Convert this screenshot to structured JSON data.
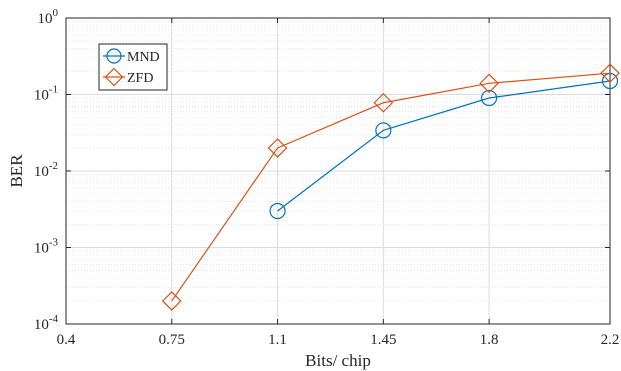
{
  "chart_data": {
    "type": "line",
    "title": "",
    "xlabel": "Bits/ chip",
    "ylabel": "BER",
    "xlim": [
      0.4,
      2.2
    ],
    "ylim": [
      0.0001,
      1
    ],
    "yscale": "log",
    "xticks": [
      "0.4",
      "0.75",
      "1.1",
      "1.45",
      "1.8",
      "2.2"
    ],
    "xtick_values": [
      0.4,
      0.75,
      1.1,
      1.45,
      1.8,
      2.2
    ],
    "yticks": [
      {
        "base": "10",
        "exp": "-4",
        "value": 0.0001
      },
      {
        "base": "10",
        "exp": "-3",
        "value": 0.001
      },
      {
        "base": "10",
        "exp": "-2",
        "value": 0.01
      },
      {
        "base": "10",
        "exp": "-1",
        "value": 0.1
      },
      {
        "base": "10",
        "exp": "0",
        "value": 1
      }
    ],
    "grid": true,
    "legend_position": "top-left",
    "series": [
      {
        "name": "MND",
        "color": "#0072BD",
        "marker": "circle",
        "x": [
          1.1,
          1.45,
          1.8,
          2.2
        ],
        "y": [
          0.003,
          0.034,
          0.09,
          0.15
        ]
      },
      {
        "name": "ZFD",
        "color": "#D95319",
        "marker": "diamond",
        "x": [
          0.75,
          1.1,
          1.45,
          1.8,
          2.2
        ],
        "y": [
          0.0002,
          0.02,
          0.078,
          0.14,
          0.19
        ]
      }
    ]
  }
}
